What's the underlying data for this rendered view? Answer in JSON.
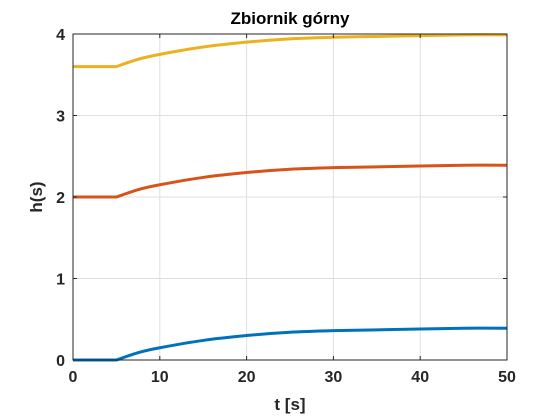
{
  "chart_data": {
    "type": "line",
    "title": "Zbiornik górny",
    "xlabel": "t [s]",
    "ylabel": "h(s)",
    "xlim": [
      0,
      50
    ],
    "ylim": [
      0,
      4
    ],
    "xticks": [
      0,
      10,
      20,
      30,
      40,
      50
    ],
    "yticks": [
      0,
      1,
      2,
      3,
      4
    ],
    "grid": true,
    "x": [
      0,
      5,
      7.5,
      10,
      15,
      20,
      25,
      30,
      35,
      40,
      45,
      50
    ],
    "series": [
      {
        "color": "#EDB120",
        "values": [
          3.6,
          3.6,
          3.69,
          3.75,
          3.84,
          3.9,
          3.94,
          3.96,
          3.97,
          3.98,
          3.99,
          3.99
        ]
      },
      {
        "color": "#D95319",
        "values": [
          2.0,
          2.0,
          2.09,
          2.15,
          2.24,
          2.3,
          2.34,
          2.36,
          2.37,
          2.38,
          2.39,
          2.39
        ]
      },
      {
        "color": "#0072BD",
        "values": [
          0.0,
          0.0,
          0.09,
          0.15,
          0.24,
          0.3,
          0.34,
          0.36,
          0.37,
          0.38,
          0.39,
          0.39
        ]
      }
    ]
  }
}
